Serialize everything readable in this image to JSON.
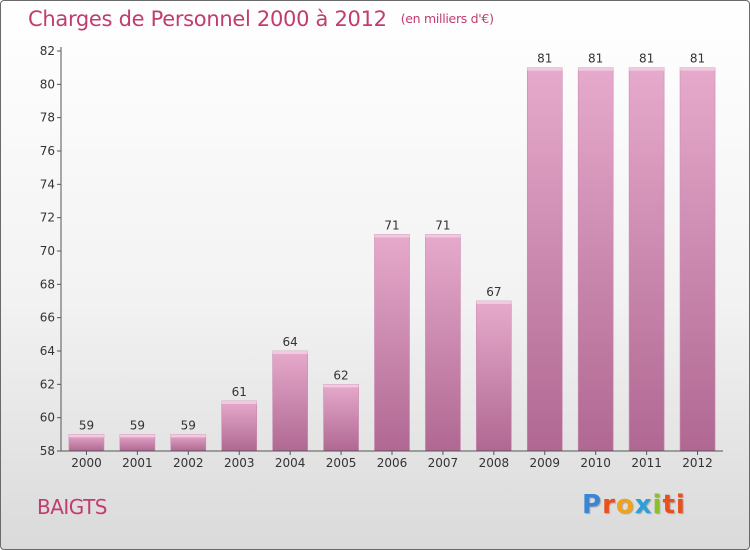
{
  "header": {
    "title": "Charges de Personnel 2000 à 2012",
    "subtitle": "(en milliers d'€)"
  },
  "commune": "BAIGTS",
  "brand": {
    "name": "Proxiti",
    "letters": [
      "P",
      "r",
      "o",
      "x",
      "i",
      "ti"
    ]
  },
  "colors": {
    "title": "#c13c6f",
    "bar_top": "#e6aacc",
    "bar_bottom": "#b06892",
    "axis": "#555555"
  },
  "chart_data": {
    "type": "bar",
    "title": "Charges de Personnel 2000 à 2012",
    "subtitle": "(en milliers d'€)",
    "categories": [
      "2000",
      "2001",
      "2002",
      "2003",
      "2004",
      "2005",
      "2006",
      "2007",
      "2008",
      "2009",
      "2010",
      "2011",
      "2012"
    ],
    "values": [
      59,
      59,
      59,
      61,
      64,
      62,
      71,
      71,
      67,
      81,
      81,
      81,
      81
    ],
    "data_labels": [
      "59",
      "59",
      "59",
      "61",
      "64",
      "62",
      "71",
      "71",
      "67",
      "81",
      "81",
      "81",
      "81"
    ],
    "yticks": [
      58,
      60,
      62,
      64,
      66,
      68,
      70,
      72,
      74,
      76,
      78,
      80,
      82
    ],
    "ylim": [
      58,
      82
    ],
    "grid": false,
    "legend": "none"
  }
}
